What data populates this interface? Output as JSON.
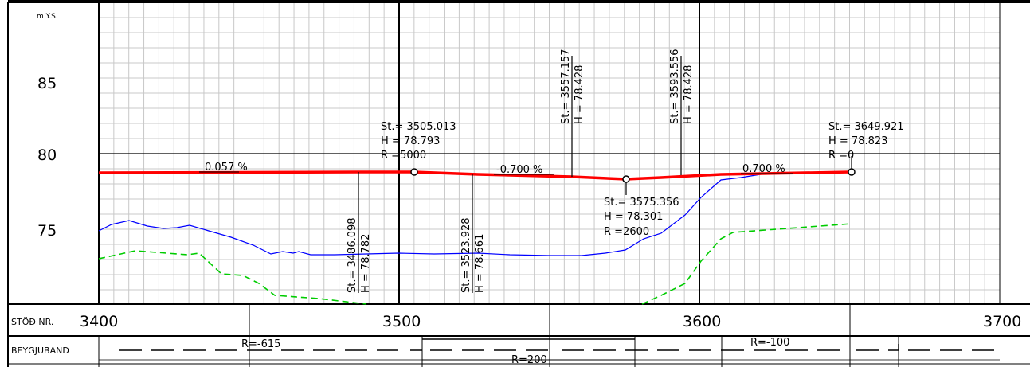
{
  "units_label": "m Y.S.",
  "elevation_labels": [
    "85",
    "80",
    "75"
  ],
  "station_row_label": "STÖÐ NR.",
  "station_labels": [
    "3400",
    "3500",
    "3600",
    "3700"
  ],
  "curve_row_label": "BEYGJUBAND",
  "curve_labels": [
    "R=-615",
    "R=200",
    "R=-100"
  ],
  "grades": [
    "0.057 %",
    "-0.700 %",
    "0.700 %"
  ],
  "vip": [
    {
      "st": "St.= 3505.013",
      "h": "H = 78.793",
      "r": "R =5000"
    },
    {
      "st": "St.= 3575.356",
      "h": "H = 78.301",
      "r": "R =2600"
    },
    {
      "st": "St.= 3649.921",
      "h": "H = 78.823",
      "r": "R =0"
    }
  ],
  "vertical_points": [
    {
      "st": "St.= 3486.098",
      "h": "H = 78.782"
    },
    {
      "st": "St.= 3523.928",
      "h": "H = 78.661"
    },
    {
      "st": "St.= 3557.157",
      "h": "H = 78.428"
    },
    {
      "st": "St.= 3593.556",
      "h": "H = 78.428"
    }
  ],
  "colors": {
    "design_line": "#ff0000",
    "ground_line": "#0000ff",
    "existing_line": "#00cc00",
    "grid": "#c8c8c8"
  }
}
